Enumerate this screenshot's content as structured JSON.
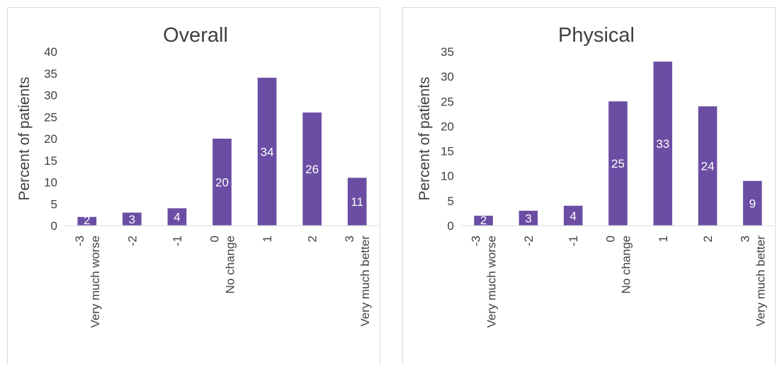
{
  "chart_data": [
    {
      "type": "bar",
      "title": "Overall",
      "ylabel": "Percent of patients",
      "xlabel": "",
      "ylim": [
        0,
        40
      ],
      "yticks": [
        0,
        5,
        10,
        15,
        20,
        25,
        30,
        35,
        40
      ],
      "categories": [
        [
          "-3",
          "Very much worse"
        ],
        [
          "-2"
        ],
        [
          "-1"
        ],
        [
          "0",
          "No change"
        ],
        [
          "1"
        ],
        [
          "2"
        ],
        [
          "3",
          "Very much better"
        ]
      ],
      "values": [
        2,
        3,
        4,
        20,
        34,
        26,
        11
      ],
      "data_labels": [
        "2",
        "3",
        "4",
        "20",
        "34",
        "26",
        "11"
      ],
      "color": "#6b4ea3",
      "grid": false
    },
    {
      "type": "bar",
      "title": "Physical",
      "ylabel": "Percent of patients",
      "xlabel": "",
      "ylim": [
        0,
        35
      ],
      "yticks": [
        0,
        5,
        10,
        15,
        20,
        25,
        30,
        35
      ],
      "categories": [
        [
          "-3",
          "Very much worse"
        ],
        [
          "-2"
        ],
        [
          "-1"
        ],
        [
          "0",
          "No change"
        ],
        [
          "1"
        ],
        [
          "2"
        ],
        [
          "3",
          "Very much better"
        ]
      ],
      "values": [
        2,
        3,
        4,
        25,
        33,
        24,
        9
      ],
      "data_labels": [
        "2",
        "3",
        "4",
        "25",
        "33",
        "24",
        "9"
      ],
      "color": "#6b4ea3",
      "grid": false
    }
  ]
}
